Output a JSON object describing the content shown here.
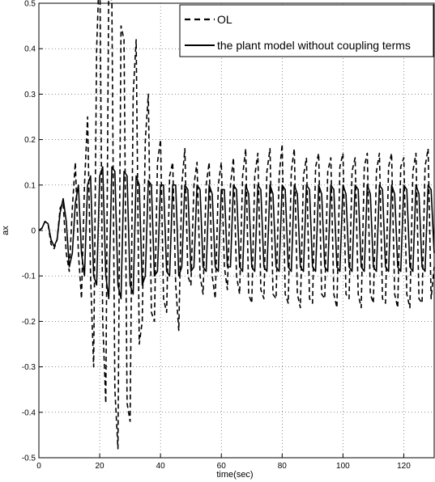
{
  "chart_data": {
    "type": "line",
    "xlabel": "time(sec)",
    "ylabel": "ax",
    "xlim": [
      0,
      130
    ],
    "ylim": [
      -0.5,
      0.5
    ],
    "grid": true,
    "legend_position": "top-right",
    "xticks": [
      "0",
      "20",
      "40",
      "60",
      "80",
      "100",
      "120"
    ],
    "yticks": [
      "-0.5",
      "-0.4",
      "-0.3",
      "-0.2",
      "-0.1",
      "0",
      "0.1",
      "0.2",
      "0.3",
      "0.4",
      "0.5"
    ],
    "series": [
      {
        "name": "OL",
        "style": "dashed",
        "color": "#000000",
        "x": [
          0,
          1,
          2,
          3,
          4,
          5,
          6,
          7,
          8,
          9,
          10,
          11,
          12,
          13,
          14,
          15,
          16,
          17,
          18,
          19,
          20,
          21,
          22,
          23,
          24,
          25,
          26,
          27,
          28,
          29,
          30,
          31,
          32,
          33,
          34,
          35,
          36,
          37,
          38,
          39,
          40,
          41,
          42,
          43,
          44,
          45,
          46,
          47,
          48,
          49,
          50,
          51,
          52,
          53,
          54,
          55,
          56,
          57,
          58,
          59,
          60,
          61,
          62,
          63,
          64,
          65,
          66,
          67,
          68,
          69,
          70,
          71,
          72,
          73,
          74,
          75,
          76,
          77,
          78,
          79,
          80,
          81,
          82,
          83,
          84,
          85,
          86,
          87,
          88,
          89,
          90,
          91,
          92,
          93,
          94,
          95,
          96,
          97,
          98,
          99,
          100,
          101,
          102,
          103,
          104,
          105,
          106,
          107,
          108,
          109,
          110,
          111,
          112,
          113,
          114,
          115,
          116,
          117,
          118,
          119,
          120,
          121,
          122,
          123,
          124,
          125,
          126,
          127,
          128,
          129,
          130
        ],
        "y": [
          0,
          0.005,
          0.02,
          0.015,
          -0.03,
          -0.04,
          -0.02,
          0.05,
          0.06,
          -0.05,
          -0.09,
          0.05,
          0.15,
          -0.05,
          -0.15,
          0.1,
          0.25,
          -0.1,
          -0.3,
          0.4,
          0.6,
          -0.2,
          -0.38,
          0.55,
          0.5,
          -0.35,
          -0.48,
          0.45,
          0.42,
          -0.38,
          -0.42,
          0.3,
          0.42,
          -0.25,
          -0.2,
          0.2,
          0.3,
          -0.18,
          -0.2,
          0.15,
          0.2,
          -0.15,
          -0.18,
          0.12,
          0.15,
          -0.12,
          -0.22,
          0.1,
          0.18,
          -0.1,
          -0.12,
          0.1,
          0.15,
          -0.1,
          -0.14,
          0.1,
          0.15,
          -0.1,
          -0.15,
          0.1,
          0.15,
          -0.08,
          -0.13,
          0.1,
          0.16,
          -0.1,
          -0.14,
          0.12,
          0.18,
          -0.14,
          -0.16,
          0.12,
          0.17,
          -0.13,
          -0.15,
          0.13,
          0.18,
          -0.14,
          -0.15,
          0.12,
          0.19,
          -0.14,
          -0.16,
          0.13,
          0.18,
          -0.14,
          -0.17,
          0.12,
          0.16,
          -0.15,
          -0.16,
          0.14,
          0.17,
          -0.14,
          -0.15,
          0.13,
          0.16,
          -0.14,
          -0.17,
          0.14,
          0.17,
          -0.14,
          -0.15,
          0.13,
          0.16,
          -0.14,
          -0.17,
          0.14,
          0.17,
          -0.14,
          -0.16,
          0.13,
          0.17,
          -0.15,
          -0.16,
          0.14,
          0.17,
          -0.14,
          -0.17,
          0.14,
          0.16,
          -0.14,
          -0.17,
          0.13,
          0.17,
          -0.15,
          -0.16,
          0.14,
          0.18,
          -0.15,
          -0.08
        ]
      },
      {
        "name": "the plant model without coupling terms",
        "style": "solid",
        "color": "#000000",
        "x": [
          0,
          1,
          2,
          3,
          4,
          5,
          6,
          7,
          8,
          9,
          10,
          11,
          12,
          13,
          14,
          15,
          16,
          17,
          18,
          19,
          20,
          21,
          22,
          23,
          24,
          25,
          26,
          27,
          28,
          29,
          30,
          31,
          32,
          33,
          34,
          35,
          36,
          37,
          38,
          39,
          40,
          41,
          42,
          43,
          44,
          45,
          46,
          47,
          48,
          49,
          50,
          51,
          52,
          53,
          54,
          55,
          56,
          57,
          58,
          59,
          60,
          61,
          62,
          63,
          64,
          65,
          66,
          67,
          68,
          69,
          70,
          71,
          72,
          73,
          74,
          75,
          76,
          77,
          78,
          79,
          80,
          81,
          82,
          83,
          84,
          85,
          86,
          87,
          88,
          89,
          90,
          91,
          92,
          93,
          94,
          95,
          96,
          97,
          98,
          99,
          100,
          101,
          102,
          103,
          104,
          105,
          106,
          107,
          108,
          109,
          110,
          111,
          112,
          113,
          114,
          115,
          116,
          117,
          118,
          119,
          120,
          121,
          122,
          123,
          124,
          125,
          126,
          127,
          128,
          129,
          130
        ],
        "y": [
          0,
          0.005,
          0.02,
          0.015,
          -0.02,
          -0.035,
          -0.02,
          0.04,
          0.07,
          0.02,
          -0.08,
          -0.05,
          0.06,
          0.1,
          -0.05,
          -0.1,
          0.1,
          0.12,
          -0.1,
          -0.12,
          0.12,
          0.14,
          -0.1,
          -0.15,
          0.14,
          0.13,
          -0.12,
          -0.15,
          0.13,
          0.12,
          -0.12,
          -0.14,
          0.12,
          0.1,
          -0.12,
          -0.1,
          0.11,
          0.1,
          -0.1,
          -0.09,
          0.1,
          0.1,
          -0.09,
          -0.1,
          0.1,
          0.1,
          -0.1,
          -0.08,
          0.1,
          0.09,
          -0.09,
          -0.08,
          0.1,
          0.09,
          -0.08,
          -0.09,
          0.1,
          0.08,
          -0.08,
          -0.09,
          0.09,
          0.09,
          -0.08,
          -0.08,
          0.1,
          0.09,
          -0.08,
          -0.09,
          0.1,
          0.08,
          -0.08,
          -0.09,
          0.1,
          0.09,
          -0.08,
          -0.09,
          0.1,
          0.08,
          -0.08,
          -0.09,
          0.1,
          0.09,
          -0.08,
          -0.09,
          0.1,
          0.08,
          -0.08,
          -0.09,
          0.1,
          0.09,
          -0.08,
          -0.09,
          0.1,
          0.08,
          -0.08,
          -0.09,
          0.1,
          0.09,
          -0.08,
          -0.09,
          0.1,
          0.08,
          -0.08,
          -0.09,
          0.1,
          0.09,
          -0.08,
          -0.09,
          0.1,
          0.08,
          -0.08,
          -0.09,
          0.1,
          0.09,
          -0.08,
          -0.09,
          0.1,
          0.08,
          -0.08,
          -0.09,
          0.1,
          0.09,
          -0.08,
          -0.09,
          0.1,
          0.08,
          -0.08,
          -0.09,
          0.1,
          0.09,
          -0.05
        ]
      }
    ]
  }
}
